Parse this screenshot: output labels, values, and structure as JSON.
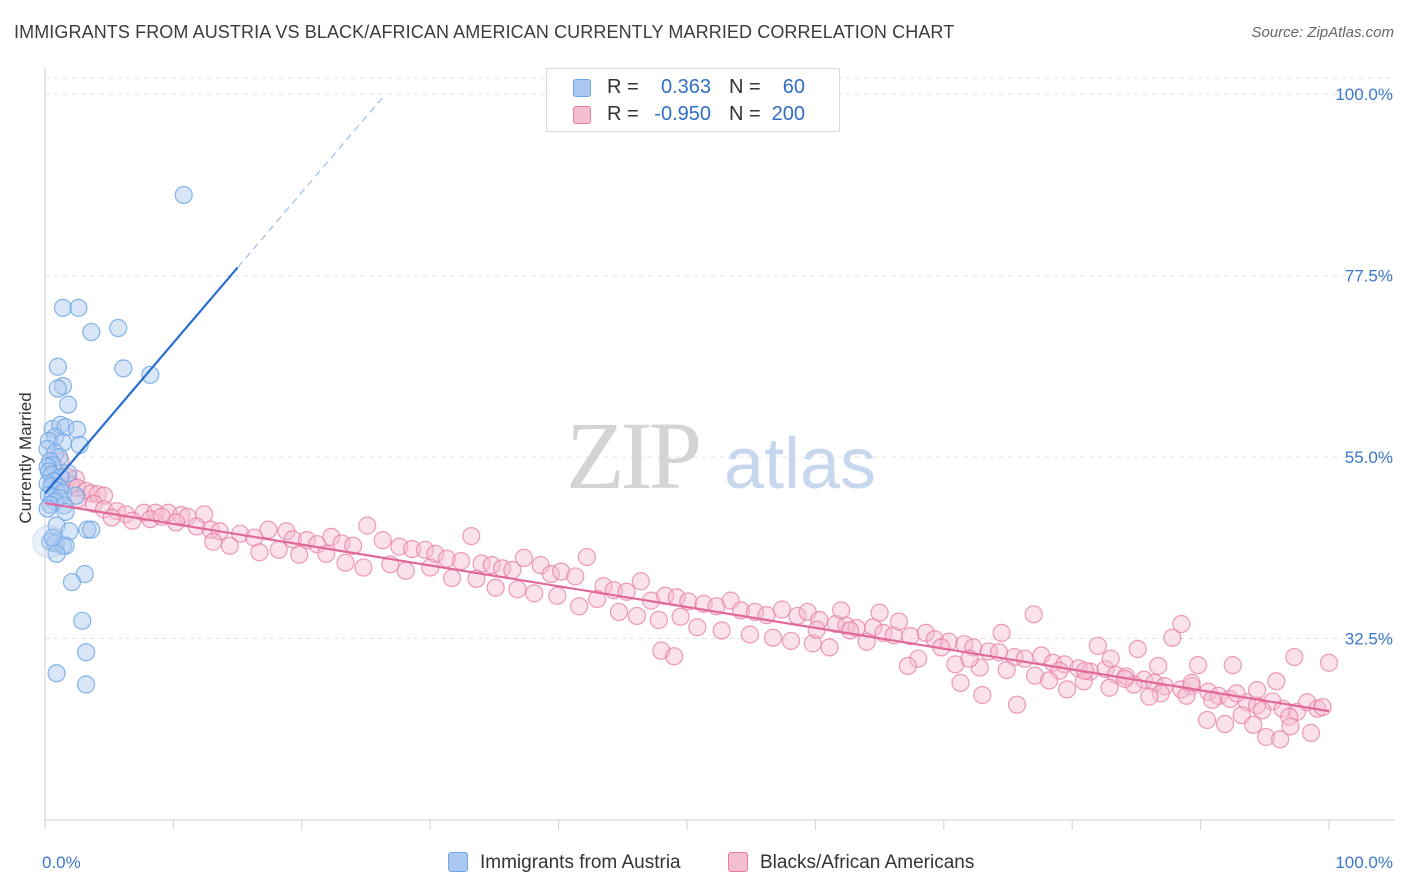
{
  "title": "IMMIGRANTS FROM AUSTRIA VS BLACK/AFRICAN AMERICAN CURRENTLY MARRIED CORRELATION CHART",
  "source": "Source: ZipAtlas.com",
  "watermark": {
    "zip": "ZIP",
    "atlas": "atlas"
  },
  "colors": {
    "blue": "#6fa8e8",
    "blue_fill": "#aac8f0",
    "blue_line": "#2a6fd0",
    "pink": "#e87ba0",
    "pink_fill": "#f5bdd0",
    "pink_line": "#e0689a",
    "axis_label": "#3a78c9",
    "grid": "#e3e3e3"
  },
  "legend": {
    "rows": [
      {
        "r_label": "R =",
        "r_value": "0.363",
        "n_label": "N =",
        "n_value": "60",
        "color": "blue"
      },
      {
        "r_label": "R =",
        "r_value": "-0.950",
        "n_label": "N =",
        "n_value": "200",
        "color": "pink"
      }
    ]
  },
  "bottom_legend": {
    "series1": "Immigrants from Austria",
    "series2": "Blacks/African Americans"
  },
  "chart_data": {
    "type": "scatter",
    "title": "IMMIGRANTS FROM AUSTRIA VS BLACK/AFRICAN AMERICAN CURRENTLY MARRIED CORRELATION CHART",
    "xlabel": "",
    "ylabel": "Currently Married",
    "xlim": [
      0,
      100
    ],
    "ylim": [
      10,
      102
    ],
    "x_tick_labels": [
      "0.0%",
      "100.0%"
    ],
    "y_tick_labels": [
      "100.0%",
      "77.5%",
      "55.0%",
      "32.5%"
    ],
    "y_ticks": [
      100,
      77.5,
      55,
      32.5
    ],
    "grid": true,
    "series": [
      {
        "name": "Immigrants from Austria",
        "color": "blue",
        "trend": {
          "x0": 0,
          "y0": 50.5,
          "x1": 15,
          "y1": 78.5,
          "dash_to_x": 26.5
        },
        "points": [
          [
            10.8,
            87.5
          ],
          [
            1.4,
            73.5
          ],
          [
            2.6,
            73.5
          ],
          [
            5.7,
            71.0
          ],
          [
            3.6,
            70.5
          ],
          [
            6.1,
            66.0
          ],
          [
            8.2,
            65.2
          ],
          [
            1.0,
            66.2
          ],
          [
            1.4,
            63.8
          ],
          [
            1.0,
            63.5
          ],
          [
            1.8,
            61.5
          ],
          [
            0.6,
            58.5
          ],
          [
            1.2,
            59.0
          ],
          [
            1.6,
            58.7
          ],
          [
            2.5,
            58.4
          ],
          [
            0.8,
            57.5
          ],
          [
            0.3,
            57.0
          ],
          [
            1.4,
            56.8
          ],
          [
            2.7,
            56.5
          ],
          [
            0.2,
            56.0
          ],
          [
            0.8,
            55.5
          ],
          [
            1.1,
            55.0
          ],
          [
            0.4,
            54.5
          ],
          [
            0.6,
            54.0
          ],
          [
            0.2,
            53.8
          ],
          [
            0.3,
            53.2
          ],
          [
            1.8,
            53.0
          ],
          [
            0.5,
            52.8
          ],
          [
            1.2,
            52.5
          ],
          [
            0.7,
            52.0
          ],
          [
            0.2,
            51.7
          ],
          [
            0.5,
            51.4
          ],
          [
            1.1,
            51.2
          ],
          [
            0.9,
            50.8
          ],
          [
            1.4,
            50.6
          ],
          [
            0.3,
            50.3
          ],
          [
            0.6,
            50.1
          ],
          [
            2.4,
            50.2
          ],
          [
            1.1,
            49.9
          ],
          [
            0.8,
            49.5
          ],
          [
            0.4,
            49.1
          ],
          [
            1.5,
            49.0
          ],
          [
            0.2,
            48.6
          ],
          [
            1.6,
            48.2
          ],
          [
            0.9,
            46.5
          ],
          [
            3.3,
            46.0
          ],
          [
            3.6,
            46.0
          ],
          [
            1.9,
            45.8
          ],
          [
            0.4,
            44.5
          ],
          [
            0.8,
            44.3
          ],
          [
            1.4,
            44.0
          ],
          [
            1.6,
            44.0
          ],
          [
            3.1,
            40.5
          ],
          [
            2.1,
            39.5
          ],
          [
            2.9,
            34.7
          ],
          [
            3.2,
            30.8
          ],
          [
            0.9,
            28.2
          ],
          [
            3.2,
            26.8
          ],
          [
            0.6,
            45.0
          ],
          [
            0.9,
            43.0
          ]
        ]
      },
      {
        "name": "Blacks/African Americans",
        "color": "pink",
        "trend": {
          "x0": 0,
          "y0": 49.3,
          "x1": 100,
          "y1": 23.5
        },
        "points": [
          [
            1.2,
            54.5
          ],
          [
            1.8,
            52.5
          ],
          [
            2.4,
            52.3
          ],
          [
            2.0,
            51.6
          ],
          [
            2.5,
            51.2
          ],
          [
            3.2,
            50.8
          ],
          [
            3.6,
            50.5
          ],
          [
            4.1,
            50.4
          ],
          [
            4.6,
            50.2
          ],
          [
            2.6,
            49.8
          ],
          [
            3.8,
            49.2
          ],
          [
            4.6,
            48.5
          ],
          [
            5.6,
            48.3
          ],
          [
            6.3,
            47.9
          ],
          [
            7.7,
            48.1
          ],
          [
            8.6,
            48.1
          ],
          [
            9.6,
            48.1
          ],
          [
            10.6,
            47.8
          ],
          [
            11.1,
            47.6
          ],
          [
            12.4,
            47.9
          ],
          [
            5.2,
            47.5
          ],
          [
            6.8,
            47.1
          ],
          [
            8.2,
            47.3
          ],
          [
            9.1,
            47.6
          ],
          [
            10.2,
            46.9
          ],
          [
            11.8,
            46.4
          ],
          [
            12.9,
            46.0
          ],
          [
            13.6,
            45.8
          ],
          [
            15.2,
            45.5
          ],
          [
            16.3,
            45.0
          ],
          [
            17.4,
            46.0
          ],
          [
            18.8,
            45.8
          ],
          [
            19.3,
            44.8
          ],
          [
            20.4,
            44.7
          ],
          [
            21.2,
            44.2
          ],
          [
            22.3,
            45.1
          ],
          [
            23.1,
            44.3
          ],
          [
            24.0,
            44.0
          ],
          [
            25.1,
            46.5
          ],
          [
            26.3,
            44.7
          ],
          [
            27.6,
            43.9
          ],
          [
            28.6,
            43.6
          ],
          [
            29.6,
            43.5
          ],
          [
            30.4,
            43.0
          ],
          [
            31.3,
            42.4
          ],
          [
            32.4,
            42.1
          ],
          [
            33.2,
            45.2
          ],
          [
            34.0,
            41.8
          ],
          [
            34.8,
            41.6
          ],
          [
            35.6,
            41.2
          ],
          [
            36.4,
            41.0
          ],
          [
            37.3,
            42.5
          ],
          [
            38.6,
            41.6
          ],
          [
            39.4,
            40.5
          ],
          [
            40.2,
            40.8
          ],
          [
            41.3,
            40.2
          ],
          [
            42.2,
            42.6
          ],
          [
            43.5,
            39.0
          ],
          [
            44.3,
            38.5
          ],
          [
            45.3,
            38.3
          ],
          [
            46.4,
            39.6
          ],
          [
            47.2,
            37.2
          ],
          [
            48.3,
            37.8
          ],
          [
            49.2,
            37.6
          ],
          [
            50.1,
            37.1
          ],
          [
            51.3,
            36.8
          ],
          [
            52.3,
            36.5
          ],
          [
            53.4,
            37.2
          ],
          [
            54.2,
            36.0
          ],
          [
            55.3,
            35.8
          ],
          [
            56.2,
            35.4
          ],
          [
            57.4,
            36.1
          ],
          [
            58.6,
            35.3
          ],
          [
            59.4,
            35.8
          ],
          [
            60.3,
            34.8
          ],
          [
            61.6,
            34.3
          ],
          [
            62.4,
            34.1
          ],
          [
            63.2,
            33.8
          ],
          [
            64.5,
            33.9
          ],
          [
            65.3,
            33.2
          ],
          [
            66.1,
            32.9
          ],
          [
            67.4,
            32.8
          ],
          [
            68.6,
            33.2
          ],
          [
            69.3,
            32.4
          ],
          [
            70.4,
            32.1
          ],
          [
            71.6,
            31.8
          ],
          [
            72.3,
            31.4
          ],
          [
            73.5,
            30.9
          ],
          [
            74.3,
            30.8
          ],
          [
            75.5,
            30.2
          ],
          [
            76.3,
            30.0
          ],
          [
            77.6,
            30.4
          ],
          [
            78.5,
            29.5
          ],
          [
            79.4,
            29.3
          ],
          [
            80.5,
            28.8
          ],
          [
            81.4,
            28.4
          ],
          [
            82.6,
            28.7
          ],
          [
            83.4,
            28.0
          ],
          [
            84.2,
            27.8
          ],
          [
            85.6,
            27.4
          ],
          [
            86.4,
            27.0
          ],
          [
            87.2,
            26.6
          ],
          [
            88.5,
            26.2
          ],
          [
            89.3,
            26.6
          ],
          [
            90.6,
            25.9
          ],
          [
            91.4,
            25.4
          ],
          [
            92.3,
            25.0
          ],
          [
            93.6,
            24.6
          ],
          [
            94.4,
            24.2
          ],
          [
            95.6,
            24.7
          ],
          [
            96.4,
            23.8
          ],
          [
            97.5,
            23.4
          ],
          [
            98.3,
            24.6
          ],
          [
            99.1,
            23.8
          ],
          [
            13.1,
            44.5
          ],
          [
            14.4,
            44.0
          ],
          [
            16.7,
            43.2
          ],
          [
            18.2,
            43.5
          ],
          [
            19.8,
            42.9
          ],
          [
            21.9,
            43.0
          ],
          [
            23.4,
            41.9
          ],
          [
            24.8,
            41.3
          ],
          [
            26.9,
            41.7
          ],
          [
            28.1,
            40.9
          ],
          [
            30.0,
            41.3
          ],
          [
            31.7,
            40.0
          ],
          [
            33.6,
            39.9
          ],
          [
            35.1,
            38.8
          ],
          [
            36.8,
            38.6
          ],
          [
            38.1,
            38.1
          ],
          [
            39.9,
            37.8
          ],
          [
            41.6,
            36.5
          ],
          [
            43.0,
            37.4
          ],
          [
            44.7,
            35.8
          ],
          [
            46.1,
            35.3
          ],
          [
            47.8,
            34.8
          ],
          [
            49.5,
            35.2
          ],
          [
            50.8,
            33.9
          ],
          [
            52.7,
            33.5
          ],
          [
            54.9,
            33.0
          ],
          [
            56.7,
            32.6
          ],
          [
            58.1,
            32.2
          ],
          [
            59.8,
            31.9
          ],
          [
            61.1,
            31.4
          ],
          [
            62.7,
            33.5
          ],
          [
            64.0,
            32.1
          ],
          [
            66.5,
            34.6
          ],
          [
            68.0,
            30.0
          ],
          [
            70.9,
            29.3
          ],
          [
            72.8,
            28.9
          ],
          [
            74.9,
            28.6
          ],
          [
            77.1,
            27.9
          ],
          [
            79.0,
            28.5
          ],
          [
            80.9,
            27.2
          ],
          [
            82.9,
            26.4
          ],
          [
            84.8,
            26.8
          ],
          [
            86.9,
            25.7
          ],
          [
            88.9,
            25.4
          ],
          [
            90.9,
            24.9
          ],
          [
            92.8,
            25.7
          ],
          [
            94.8,
            23.6
          ],
          [
            96.9,
            22.8
          ],
          [
            48.0,
            31.0
          ],
          [
            49.0,
            30.3
          ],
          [
            60.1,
            33.6
          ],
          [
            62.0,
            36.0
          ],
          [
            65.0,
            35.7
          ],
          [
            67.2,
            29.1
          ],
          [
            69.8,
            31.4
          ],
          [
            71.3,
            27.0
          ],
          [
            73.0,
            25.5
          ],
          [
            75.7,
            24.3
          ],
          [
            78.2,
            27.3
          ],
          [
            81.0,
            28.5
          ],
          [
            83.0,
            30.0
          ],
          [
            84.1,
            27.5
          ],
          [
            86.0,
            25.3
          ],
          [
            87.8,
            32.6
          ],
          [
            88.5,
            34.3
          ],
          [
            89.8,
            29.2
          ],
          [
            90.5,
            22.4
          ],
          [
            91.9,
            21.9
          ],
          [
            93.2,
            23.0
          ],
          [
            94.1,
            21.8
          ],
          [
            95.1,
            20.3
          ],
          [
            96.2,
            20.0
          ],
          [
            97.0,
            21.6
          ],
          [
            98.6,
            20.8
          ],
          [
            99.5,
            24.0
          ],
          [
            100.0,
            29.5
          ],
          [
            97.3,
            30.2
          ],
          [
            95.9,
            27.2
          ],
          [
            94.4,
            26.1
          ],
          [
            92.5,
            29.2
          ],
          [
            89.3,
            27.0
          ],
          [
            86.7,
            29.1
          ],
          [
            85.1,
            31.2
          ],
          [
            82.0,
            31.6
          ],
          [
            79.6,
            26.2
          ],
          [
            77.0,
            35.5
          ],
          [
            74.5,
            33.2
          ],
          [
            72.0,
            30.0
          ]
        ]
      }
    ]
  }
}
